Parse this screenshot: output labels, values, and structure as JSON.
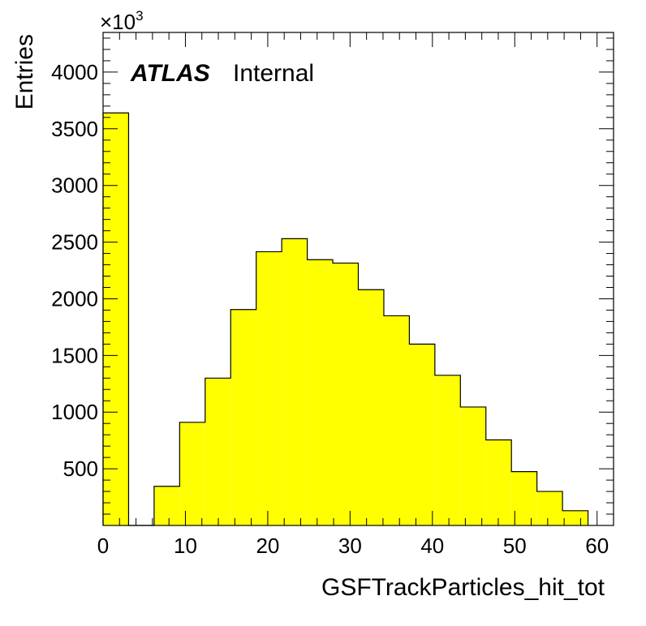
{
  "chart_data": {
    "type": "bar",
    "histogram": true,
    "xlabel": "GSFTrackParticles_hit_tot",
    "ylabel": "Entries",
    "y_multiplier": "×10",
    "y_multiplier_exp": "3",
    "label_brand": "ATLAS",
    "label_status": "Internal",
    "fill_color": "#ffff00",
    "line_color": "#000000",
    "xlim": [
      0,
      62
    ],
    "ylim": [
      0,
      4350
    ],
    "x_ticks": [
      0,
      10,
      20,
      30,
      40,
      50,
      60
    ],
    "y_ticks": [
      500,
      1000,
      1500,
      2000,
      2500,
      3000,
      3500,
      4000
    ],
    "x_tick_labels": [
      "0",
      "10",
      "20",
      "30",
      "40",
      "50",
      "60"
    ],
    "y_tick_labels": [
      "500",
      "1000",
      "1500",
      "2000",
      "2500",
      "3000",
      "3500",
      "4000"
    ],
    "bin_edges": [
      0,
      3.1,
      6.2,
      9.3,
      12.4,
      15.5,
      18.6,
      21.7,
      24.8,
      27.9,
      31.0,
      34.1,
      37.2,
      40.3,
      43.4,
      46.5,
      49.6,
      52.7,
      55.8,
      58.9
    ],
    "values": [
      3640,
      0,
      345,
      910,
      1300,
      1905,
      2415,
      2530,
      2345,
      2315,
      2080,
      1850,
      1600,
      1325,
      1045,
      755,
      475,
      300,
      130
    ]
  }
}
